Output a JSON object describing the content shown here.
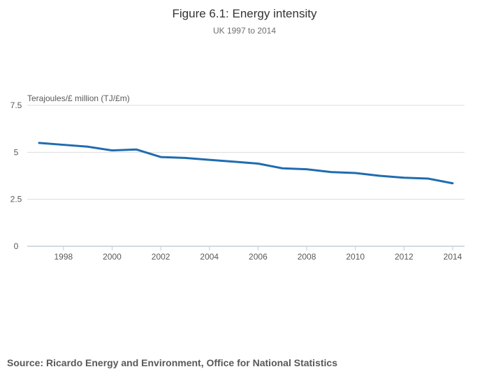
{
  "header": {
    "title": "Figure 6.1: Energy intensity",
    "subtitle": "UK 1997 to 2014"
  },
  "source_note": "Source: Ricardo Energy and Environment, Office for National Statistics",
  "chart_data": {
    "type": "line",
    "title": "Figure 6.1: Energy intensity",
    "subtitle": "UK 1997 to 2014",
    "ylabel": "Terajoules/£ million (TJ/£m)",
    "xlabel": "",
    "series_name": "Energy intensity (TJ/£m)",
    "x": [
      1997,
      1998,
      1999,
      2000,
      2001,
      2002,
      2003,
      2004,
      2005,
      2006,
      2007,
      2008,
      2009,
      2010,
      2011,
      2012,
      2013,
      2014
    ],
    "values": [
      5.5,
      5.4,
      5.3,
      5.1,
      5.15,
      4.75,
      4.7,
      4.6,
      4.5,
      4.4,
      4.15,
      4.1,
      3.95,
      3.9,
      3.75,
      3.65,
      3.6,
      3.35
    ],
    "ylim": [
      0,
      7.5
    ],
    "yticks": [
      7.5,
      5,
      2.5,
      0
    ],
    "xticks": [
      1998,
      2000,
      2002,
      2004,
      2006,
      2008,
      2010,
      2012,
      2014
    ],
    "grid": "horizontal",
    "legend_position": "none",
    "colors": {
      "line": "#1f6cb0",
      "grid": "#dcdcdc",
      "axis": "#c3cdd9",
      "tick_text": "#595959",
      "title_text": "#333333",
      "subtitle_text": "#6e6e6e",
      "source_text": "#595959"
    }
  }
}
